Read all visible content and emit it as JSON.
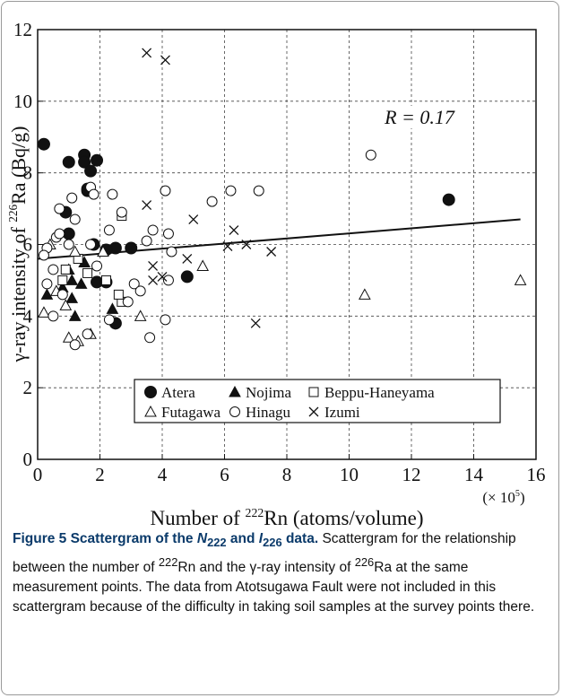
{
  "chart_data": {
    "type": "scatter",
    "y_label": [
      "γ-ray intensity of ",
      "226",
      "Ra  (Bq/g)"
    ],
    "x_label": [
      "Number of  ",
      "222",
      "Rn (atoms/volume)"
    ],
    "x_multiplier": [
      "(× 10",
      "5",
      ")"
    ],
    "annotation": "R = 0.17",
    "xlim": [
      0,
      16
    ],
    "xticks": [
      0,
      2,
      4,
      6,
      8,
      10,
      12,
      14,
      16
    ],
    "ylim": [
      0,
      12
    ],
    "yticks": [
      0,
      2,
      4,
      6,
      8,
      10,
      12
    ],
    "grid": true,
    "legend": "bottom",
    "trend": {
      "x": [
        0,
        15.5
      ],
      "y": [
        5.6,
        6.7
      ]
    },
    "series": [
      {
        "name": "Atera",
        "marker": "circle-filled",
        "color": "#111111",
        "x": [
          0.2,
          1.0,
          1.5,
          1.5,
          1.7,
          1.9,
          1.6,
          1.6,
          0.9,
          1.0,
          1.8,
          2.5,
          2.2,
          3.0,
          1.9,
          2.2,
          2.5,
          4.8,
          13.2
        ],
        "y": [
          8.8,
          8.3,
          8.5,
          8.3,
          8.05,
          8.35,
          7.5,
          7.55,
          6.9,
          6.3,
          6.0,
          5.9,
          5.85,
          5.9,
          4.95,
          4.95,
          3.8,
          5.1,
          7.25
        ]
      },
      {
        "name": "Nojima",
        "marker": "triangle-filled",
        "color": "#111111",
        "x": [
          0.3,
          0.8,
          1.0,
          1.1,
          1.2,
          1.4,
          1.1,
          2.4,
          1.5
        ],
        "y": [
          4.6,
          4.8,
          5.3,
          5.0,
          4.0,
          4.9,
          4.5,
          4.2,
          5.5
        ]
      },
      {
        "name": "Beppu-Haneyama",
        "marker": "square-open",
        "color": "#111111",
        "x": [
          0.9,
          0.8,
          1.6,
          2.2,
          2.7,
          2.7,
          1.3,
          2.6
        ],
        "y": [
          5.3,
          5.0,
          5.2,
          5.0,
          4.4,
          6.8,
          5.6,
          4.6
        ]
      },
      {
        "name": "Futagawa",
        "marker": "triangle-open",
        "color": "#111111",
        "x": [
          0.2,
          0.4,
          0.6,
          0.9,
          1.0,
          1.3,
          1.7,
          3.3,
          5.3,
          10.5,
          15.5,
          2.1,
          1.2
        ],
        "y": [
          4.1,
          6.0,
          4.7,
          4.3,
          3.4,
          3.3,
          3.5,
          4.0,
          5.4,
          4.6,
          5.0,
          5.8,
          5.8
        ]
      },
      {
        "name": "Hinagu",
        "marker": "circle-open",
        "color": "#111111",
        "x": [
          0.3,
          0.5,
          0.6,
          0.7,
          1.1,
          1.2,
          1.7,
          1.8,
          2.4,
          2.7,
          3.7,
          4.1,
          5.6,
          6.2,
          7.1,
          10.7,
          4.2,
          4.3,
          3.5,
          0.2,
          0.8,
          0.5,
          1.2,
          1.6,
          2.3,
          3.6,
          4.1,
          4.2,
          3.1,
          2.9,
          1.7,
          1.0,
          0.7,
          2.3,
          0.3,
          3.3,
          1.9
        ],
        "y": [
          5.9,
          5.3,
          6.2,
          7.0,
          7.3,
          6.7,
          7.6,
          7.4,
          7.4,
          6.9,
          6.4,
          7.5,
          7.2,
          7.5,
          7.5,
          8.5,
          6.3,
          5.8,
          6.1,
          5.7,
          4.6,
          4.0,
          3.2,
          3.5,
          3.9,
          3.4,
          3.9,
          5.0,
          4.9,
          4.4,
          6.0,
          6.0,
          6.3,
          6.4,
          4.9,
          4.7,
          5.4
        ]
      },
      {
        "name": "Izumi",
        "marker": "cross",
        "color": "#111111",
        "x": [
          3.5,
          4.1,
          3.5,
          5.0,
          6.3,
          6.7,
          7.5,
          3.7,
          4.8,
          3.7,
          4.0,
          7.0,
          6.1
        ],
        "y": [
          11.35,
          11.15,
          7.1,
          6.7,
          6.4,
          6.0,
          5.8,
          5.4,
          5.6,
          5.0,
          5.1,
          3.8,
          5.95
        ]
      }
    ]
  },
  "caption": {
    "title": [
      "Figure 5 Scattergram of the ",
      "N",
      "222",
      " and ",
      "I",
      "226",
      " data."
    ],
    "text": [
      "Scattergram for the relationship between the number of ",
      "222",
      "Rn and the γ-ray intensity of ",
      "226",
      "Ra at the same measurement points. The data from Atotsugawa Fault were not included in this scattergram because of the difficulty in taking soil samples at the survey points there."
    ]
  }
}
